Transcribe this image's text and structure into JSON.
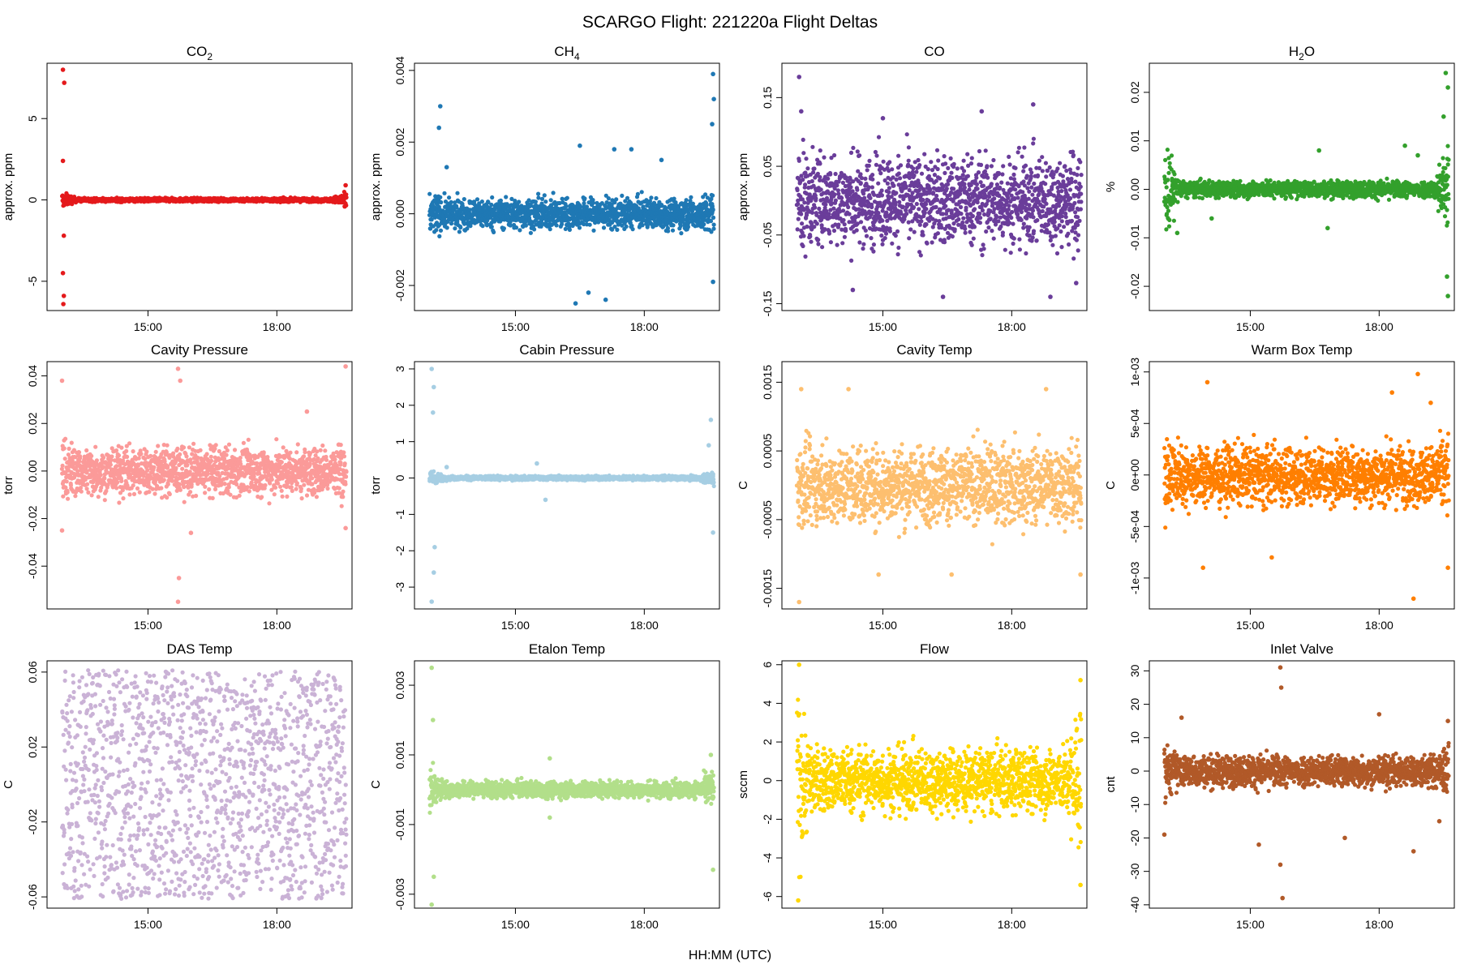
{
  "title": "SCARGO Flight: 221220a  Flight Deltas",
  "xlabel": "HH:MM (UTC)",
  "chart_data": [
    {
      "type": "scatter",
      "title_main": "CO",
      "title_sub": "2",
      "ylabel": "approx. ppm",
      "color": "#E41A1C",
      "ylim": [
        -6.8,
        8.4
      ],
      "yticks": [
        5,
        0,
        -5
      ],
      "ytick_labels": [
        "5",
        "0",
        "-5"
      ],
      "xticks": [
        "15:00",
        "18:00"
      ],
      "band": {
        "center": 0,
        "spread": 0.12,
        "edge_spread": 0.5
      },
      "outliers": [
        [
          13.02,
          8.0
        ],
        [
          13.05,
          7.2
        ],
        [
          13.02,
          2.4
        ],
        [
          13.04,
          -2.2
        ],
        [
          13.02,
          -4.5
        ],
        [
          13.04,
          -5.9
        ],
        [
          13.03,
          -6.4
        ],
        [
          19.6,
          0.9
        ],
        [
          19.58,
          -0.4
        ]
      ]
    },
    {
      "type": "scatter",
      "title_main": "CH",
      "title_sub": "4",
      "ylabel": "approx. ppm",
      "color": "#1F78B4",
      "ylim": [
        -0.0027,
        0.0042
      ],
      "yticks": [
        0.004,
        0.002,
        0,
        -0.002
      ],
      "ytick_labels": [
        "0.004",
        "0.002",
        "0.000",
        "-0.002"
      ],
      "xticks": [
        "15:00",
        "18:00"
      ],
      "band": {
        "center": 0,
        "spread": 0.00045,
        "edge_spread": 0.0007
      },
      "outliers": [
        [
          13.25,
          0.003
        ],
        [
          13.22,
          0.0024
        ],
        [
          16.5,
          0.0019
        ],
        [
          17.3,
          0.0018
        ],
        [
          17.7,
          0.0018
        ],
        [
          16.7,
          -0.0022
        ],
        [
          17.1,
          -0.0024
        ],
        [
          16.4,
          -0.0025
        ],
        [
          19.6,
          0.0039
        ],
        [
          19.62,
          0.0032
        ],
        [
          19.58,
          0.0025
        ],
        [
          19.6,
          -0.0019
        ],
        [
          13.4,
          0.0013
        ],
        [
          18.4,
          0.0015
        ]
      ]
    },
    {
      "type": "scatter",
      "title_main": "CO",
      "title_sub": "",
      "ylabel": "approx. ppm",
      "color": "#6A3D9A",
      "ylim": [
        -0.16,
        0.2
      ],
      "yticks": [
        0.15,
        0.05,
        -0.05,
        -0.15
      ],
      "ytick_labels": [
        "0.15",
        "0.05",
        "-0.05",
        "-0.15"
      ],
      "xticks": [
        "15:00",
        "18:00"
      ],
      "band": {
        "center": 0,
        "spread": 0.07,
        "edge_spread": 0.09
      },
      "outliers": [
        [
          13.05,
          0.18
        ],
        [
          13.1,
          0.13
        ],
        [
          15.0,
          0.12
        ],
        [
          18.5,
          0.14
        ],
        [
          17.3,
          0.13
        ],
        [
          16.4,
          -0.14
        ],
        [
          14.3,
          -0.13
        ],
        [
          19.5,
          -0.12
        ],
        [
          18.9,
          -0.14
        ]
      ]
    },
    {
      "type": "scatter",
      "title_main": "H",
      "title_sub": "2",
      "title_tail": "O",
      "ylabel": "%",
      "color": "#33A02C",
      "ylim": [
        -0.025,
        0.026
      ],
      "yticks": [
        0.02,
        0.01,
        0,
        -0.01,
        -0.02
      ],
      "ytick_labels": [
        "0.02",
        "0.01",
        "0.00",
        "-0.01",
        "-0.02"
      ],
      "xticks": [
        "15:00",
        "18:00"
      ],
      "band": {
        "center": 0,
        "spread": 0.0018,
        "edge_spread": 0.012
      },
      "outliers": [
        [
          19.55,
          0.024
        ],
        [
          19.6,
          0.021
        ],
        [
          19.5,
          0.015
        ],
        [
          19.6,
          -0.022
        ],
        [
          19.58,
          -0.018
        ],
        [
          16.6,
          0.008
        ],
        [
          18.6,
          0.009
        ],
        [
          18.9,
          0.007
        ],
        [
          13.3,
          -0.009
        ],
        [
          16.8,
          -0.008
        ],
        [
          14.1,
          -0.006
        ]
      ]
    },
    {
      "type": "scatter",
      "title_main": "Cavity Pressure",
      "title_sub": "",
      "ylabel": "torr",
      "color": "#FB9A99",
      "ylim": [
        -0.058,
        0.046
      ],
      "yticks": [
        0.04,
        0.02,
        0,
        -0.02,
        -0.04
      ],
      "ytick_labels": [
        "0.04",
        "0.02",
        "0.00",
        "-0.02",
        "-0.04"
      ],
      "xticks": [
        "15:00",
        "18:00"
      ],
      "band": {
        "center": 0,
        "spread": 0.011,
        "edge_spread": 0.015
      },
      "outliers": [
        [
          15.7,
          0.043
        ],
        [
          15.75,
          0.038
        ],
        [
          15.7,
          -0.055
        ],
        [
          15.72,
          -0.045
        ],
        [
          13.0,
          0.038
        ],
        [
          13.0,
          -0.025
        ],
        [
          19.6,
          0.044
        ],
        [
          19.6,
          -0.024
        ],
        [
          16.0,
          -0.026
        ],
        [
          18.7,
          0.025
        ]
      ]
    },
    {
      "type": "scatter",
      "title_main": "Cabin Pressure",
      "title_sub": "",
      "ylabel": "torr",
      "color": "#A6CEE3",
      "ylim": [
        -3.6,
        3.2
      ],
      "yticks": [
        3,
        2,
        1,
        0,
        -1,
        -2,
        -3
      ],
      "ytick_labels": [
        "3",
        "2",
        "1",
        "0",
        "-1",
        "-2",
        "-3"
      ],
      "xticks": [
        "15:00",
        "18:00"
      ],
      "band": {
        "center": 0,
        "spread": 0.06,
        "edge_spread": 0.25
      },
      "outliers": [
        [
          13.05,
          3.0
        ],
        [
          13.1,
          2.5
        ],
        [
          13.08,
          1.8
        ],
        [
          13.05,
          -3.4
        ],
        [
          13.1,
          -2.6
        ],
        [
          13.12,
          -1.9
        ],
        [
          15.5,
          0.4
        ],
        [
          15.7,
          -0.6
        ],
        [
          19.55,
          1.6
        ],
        [
          19.6,
          -1.5
        ],
        [
          19.5,
          0.9
        ],
        [
          13.4,
          0.3
        ]
      ]
    },
    {
      "type": "scatter",
      "title_main": "Cavity Temp",
      "title_sub": "",
      "ylabel": "C",
      "color": "#FDBF6F",
      "ylim": [
        -0.0018,
        0.0018
      ],
      "yticks": [
        0.0015,
        0.0005,
        -0.0005,
        -0.0015
      ],
      "ytick_labels": [
        "0.0015",
        "0.0005",
        "-0.0005",
        "-0.0015"
      ],
      "xticks": [
        "15:00",
        "18:00"
      ],
      "band": {
        "center": 0,
        "spread": 0.0006,
        "edge_spread": 0.0007
      },
      "outliers": [
        [
          13.05,
          -0.0017
        ],
        [
          13.1,
          0.0014
        ],
        [
          14.2,
          0.0014
        ],
        [
          18.8,
          0.0014
        ],
        [
          16.6,
          -0.0013
        ],
        [
          19.6,
          -0.0013
        ],
        [
          14.9,
          -0.0013
        ]
      ]
    },
    {
      "type": "scatter",
      "title_main": "Warm Box Temp",
      "title_sub": "",
      "ylabel": "C",
      "color": "#FF7F00",
      "ylim": [
        -0.0013,
        0.0011
      ],
      "yticks": [
        0.001,
        0.0005,
        0,
        -0.0005,
        -0.001
      ],
      "ytick_labels": [
        "1e-03",
        "5e-04",
        "0e+00",
        "-5e-04",
        "-1e-03"
      ],
      "xticks": [
        "15:00",
        "18:00"
      ],
      "band": {
        "center": 0,
        "spread": 0.0003,
        "edge_spread": 0.0005
      },
      "outliers": [
        [
          18.9,
          0.00098
        ],
        [
          14.0,
          0.0009
        ],
        [
          18.3,
          0.0008
        ],
        [
          19.2,
          0.0007
        ],
        [
          18.8,
          -0.0012
        ],
        [
          13.9,
          -0.0009
        ],
        [
          19.6,
          -0.0009
        ],
        [
          15.5,
          -0.0008
        ]
      ]
    },
    {
      "type": "scatter",
      "title_main": "DAS Temp",
      "title_sub": "",
      "ylabel": "C",
      "color": "#CAB2D6",
      "ylim": [
        -0.066,
        0.066
      ],
      "yticks": [
        0.06,
        0.02,
        -0.02,
        -0.06
      ],
      "ytick_labels": [
        "0.06",
        "0.02",
        "-0.02",
        "-0.06"
      ],
      "xticks": [
        "15:00",
        "18:00"
      ],
      "band": {
        "center": 0,
        "spread": 0.061,
        "edge_spread": 0.061,
        "uniform": true
      },
      "outliers": []
    },
    {
      "type": "scatter",
      "title_main": "Etalon Temp",
      "title_sub": "",
      "ylabel": "C",
      "color": "#B2DF8A",
      "ylim": [
        -0.0034,
        0.0037
      ],
      "yticks": [
        0.003,
        0.001,
        -0.001,
        -0.003
      ],
      "ytick_labels": [
        "0.003",
        "0.001",
        "-0.001",
        "-0.003"
      ],
      "xticks": [
        "15:00",
        "18:00"
      ],
      "band": {
        "center": 0,
        "spread": 0.00025,
        "edge_spread": 0.0007
      },
      "outliers": [
        [
          13.05,
          0.0035
        ],
        [
          13.08,
          0.002
        ],
        [
          13.05,
          -0.0033
        ],
        [
          13.1,
          -0.0025
        ],
        [
          15.8,
          0.0009
        ],
        [
          15.8,
          -0.0008
        ],
        [
          19.6,
          -0.0023
        ],
        [
          19.55,
          0.001
        ]
      ]
    },
    {
      "type": "scatter",
      "title_main": "Flow",
      "title_sub": "",
      "ylabel": "sccm",
      "color": "#FFD700",
      "ylim": [
        -6.6,
        6.2
      ],
      "yticks": [
        6,
        4,
        2,
        0,
        -2,
        -4,
        -6
      ],
      "ytick_labels": [
        "6",
        "4",
        "2",
        "0",
        "-2",
        "-4",
        "-6"
      ],
      "xticks": [
        "15:00",
        "18:00"
      ],
      "band": {
        "center": 0,
        "spread": 1.8,
        "edge_spread": 5.2
      },
      "outliers": [
        [
          13.05,
          6.0
        ],
        [
          13.03,
          -6.2
        ],
        [
          19.6,
          5.2
        ],
        [
          19.6,
          -5.4
        ]
      ]
    },
    {
      "type": "scatter",
      "title_main": "Inlet Valve",
      "title_sub": "",
      "ylabel": "cnt",
      "color": "#B15928",
      "ylim": [
        -41,
        33
      ],
      "yticks": [
        30,
        20,
        10,
        0,
        -10,
        -20,
        -30,
        -40
      ],
      "ytick_labels": [
        "30",
        "20",
        "10",
        "0",
        "-10",
        "-20",
        "-30",
        "-40"
      ],
      "xticks": [
        "15:00",
        "18:00"
      ],
      "band": {
        "center": 0,
        "spread": 5,
        "edge_spread": 9
      },
      "outliers": [
        [
          15.7,
          31
        ],
        [
          15.72,
          25
        ],
        [
          15.75,
          -38
        ],
        [
          15.7,
          -28
        ],
        [
          13.4,
          16
        ],
        [
          13.0,
          -19
        ],
        [
          18.0,
          17
        ],
        [
          18.8,
          -24
        ],
        [
          19.6,
          15
        ],
        [
          17.2,
          -20
        ],
        [
          15.2,
          -22
        ],
        [
          19.4,
          -15
        ]
      ]
    }
  ]
}
